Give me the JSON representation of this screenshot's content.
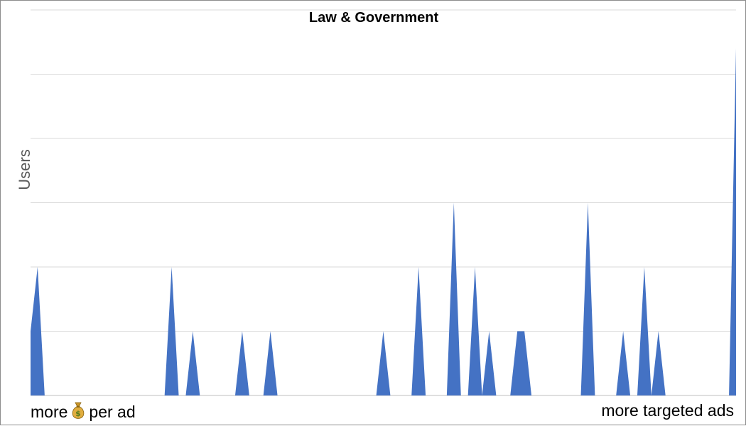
{
  "chart_data": {
    "type": "area",
    "title": "Law & Government",
    "ylabel": "Users",
    "xlabel_left": {
      "before_icon": "more",
      "icon": "money-bag-icon",
      "after_icon": "per ad"
    },
    "xlabel_right": "more targeted ads",
    "ylim": [
      0,
      6
    ],
    "grid": true,
    "legend": "none",
    "series": [
      {
        "color": "#4472C4",
        "values": [
          1,
          2,
          0,
          0,
          0,
          0,
          0,
          0,
          0,
          0,
          0,
          0,
          0,
          0,
          0,
          0,
          0,
          0,
          0,
          0,
          2,
          0,
          0,
          1,
          0,
          0,
          0,
          0,
          0,
          0,
          1,
          0,
          0,
          0,
          1,
          0,
          0,
          0,
          0,
          0,
          0,
          0,
          0,
          0,
          0,
          0,
          0,
          0,
          0,
          0,
          1,
          0,
          0,
          0,
          0,
          2,
          0,
          0,
          0,
          0,
          3,
          0,
          0,
          2,
          0,
          1,
          0,
          0,
          0,
          1,
          1,
          0,
          0,
          0,
          0,
          0,
          0,
          0,
          0,
          3,
          0,
          0,
          0,
          0,
          1,
          0,
          0,
          2,
          0,
          1,
          0,
          0,
          0,
          0,
          0,
          0,
          0,
          0,
          0,
          0,
          5.4
        ]
      }
    ]
  }
}
